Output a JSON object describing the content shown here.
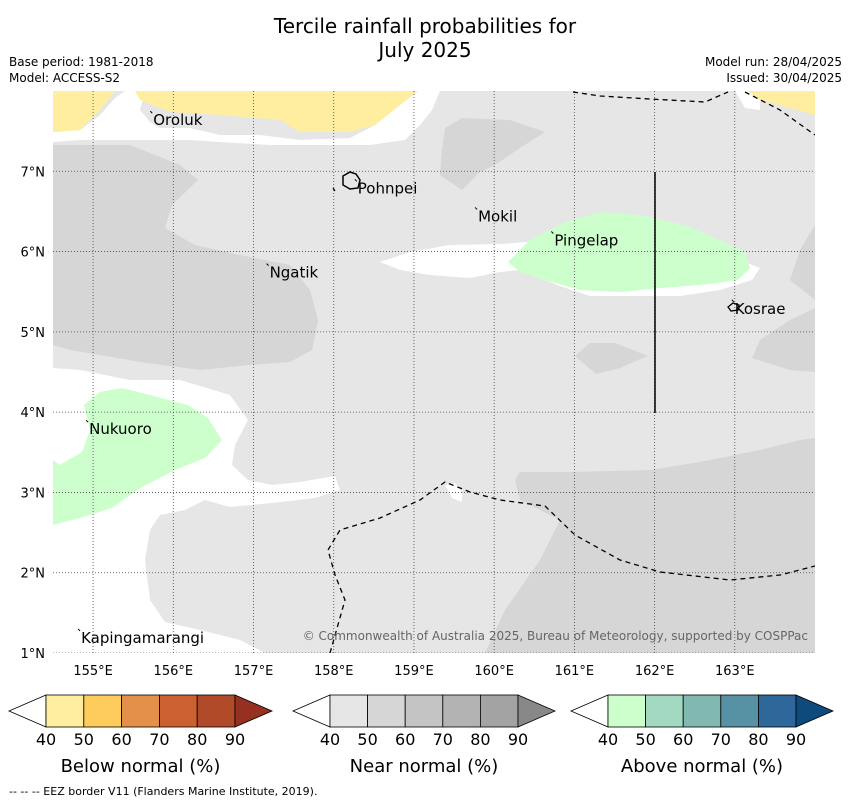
{
  "title_line1": "Tercile rainfall probabilities for",
  "title_line2": "July 2025",
  "meta_left": [
    "Base period: 1981-2018",
    "Model: ACCESS-S2"
  ],
  "meta_right": [
    "Model run: 28/04/2025",
    "Issued: 30/04/2025"
  ],
  "map": {
    "lon_range": [
      154.5,
      164.0
    ],
    "lat_range": [
      1.0,
      8.0
    ],
    "lon_ticks": [
      "155°E",
      "156°E",
      "157°E",
      "158°E",
      "159°E",
      "160°E",
      "161°E",
      "162°E",
      "163°E"
    ],
    "lat_ticks": [
      "1°N",
      "2°N",
      "3°N",
      "4°N",
      "5°N",
      "6°N",
      "7°N"
    ],
    "places": [
      {
        "name": "Oroluk",
        "lon": 155.75,
        "lat": 7.7
      },
      {
        "name": "Pohnpei",
        "lon": 158.3,
        "lat": 6.85
      },
      {
        "name": "Mokil",
        "lon": 159.8,
        "lat": 6.5
      },
      {
        "name": "Pingelap",
        "lon": 160.75,
        "lat": 6.2
      },
      {
        "name": "Ngatik",
        "lon": 157.2,
        "lat": 5.8
      },
      {
        "name": "Kosrae",
        "lon": 163.0,
        "lat": 5.35
      },
      {
        "name": "Nukuoro",
        "lon": 154.95,
        "lat": 3.85
      },
      {
        "name": "Kapingamarangi",
        "lon": 154.85,
        "lat": 1.25
      }
    ],
    "copyright": "© Commonwealth of Australia 2025, Bureau of Meteorology, supported by COSPPac",
    "background_color": "#ffffff",
    "grid": true
  },
  "colorbars": [
    {
      "label": "Below normal (%)",
      "colors": [
        "#ffffff",
        "#ffeda0",
        "#fecc5c",
        "#e3914a",
        "#cb6030",
        "#b04a28",
        "#963020"
      ]
    },
    {
      "label": "Near normal (%)",
      "colors": [
        "#ffffff",
        "#e6e6e6",
        "#d6d6d6",
        "#c4c4c4",
        "#b3b3b3",
        "#a3a3a3",
        "#888888"
      ]
    },
    {
      "label": "Above normal (%)",
      "colors": [
        "#ffffff",
        "#ccffcc",
        "#a2d9c0",
        "#81b8b1",
        "#5792a4",
        "#2e6799",
        "#0f4a7d"
      ]
    }
  ],
  "colorbar_ticks": [
    "40",
    "50",
    "60",
    "70",
    "80",
    "90"
  ],
  "footnote": "--  --  -- EEZ border V11 (Flanders Marine Institute, 2019)."
}
